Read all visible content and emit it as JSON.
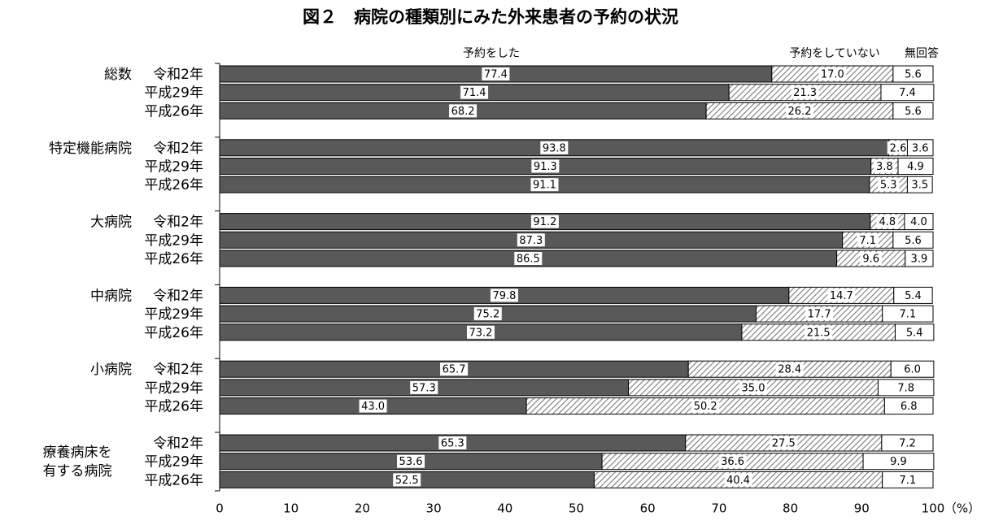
{
  "chart_data": {
    "type": "stacked-bar-horizontal",
    "title": "図２　病院の種類別にみた外来患者の予約の状況",
    "x_unit_label": "（%）",
    "groups": [
      {
        "name": "総数",
        "categories": [
          "令和2年",
          "平成29年",
          "平成26年"
        ]
      },
      {
        "name": "特定機能病院",
        "categories": [
          "令和2年",
          "平成29年",
          "平成26年"
        ]
      },
      {
        "name": "大病院",
        "categories": [
          "令和2年",
          "平成29年",
          "平成26年"
        ]
      },
      {
        "name": "中病院",
        "categories": [
          "令和2年",
          "平成29年",
          "平成26年"
        ]
      },
      {
        "name": "小病院",
        "categories": [
          "令和2年",
          "平成29年",
          "平成26年"
        ]
      },
      {
        "name": "療養病床を\n有する病院",
        "categories": [
          "令和2年",
          "平成29年",
          "平成26年"
        ]
      }
    ],
    "series": [
      {
        "name": "予約をした",
        "color": "#595959",
        "values": [
          77.4,
          71.4,
          68.2,
          93.8,
          91.3,
          91.1,
          91.2,
          87.3,
          86.5,
          79.8,
          75.2,
          73.2,
          65.7,
          57.3,
          43.0,
          65.3,
          53.6,
          52.5
        ],
        "value_labels": [
          "77.4",
          "71.4",
          "68.2",
          "93.8",
          "91.3",
          "91.1",
          "91.2",
          "87.3",
          "86.5",
          "79.8",
          "75.2",
          "73.2",
          "65.7",
          "57.3",
          "43.0",
          "65.3",
          "53.6",
          "52.5"
        ]
      },
      {
        "name": "予約をしていない",
        "color": "#8c8c8c",
        "pattern": "hatch",
        "values": [
          17.0,
          21.3,
          26.2,
          2.6,
          3.8,
          5.3,
          4.8,
          7.1,
          9.6,
          14.7,
          17.7,
          21.5,
          28.4,
          35.0,
          50.2,
          27.5,
          36.6,
          40.4
        ],
        "value_labels": [
          "17.0",
          "21.3",
          "26.2",
          "2.6",
          "3.8",
          "5.3",
          "4.8",
          "7.1",
          "9.6",
          "14.7",
          "17.7",
          "21.5",
          "28.4",
          "35.0",
          "50.2",
          "27.5",
          "36.6",
          "40.4"
        ]
      },
      {
        "name": "無回答",
        "color": "#ffffff",
        "values": [
          5.6,
          7.4,
          5.6,
          3.6,
          4.9,
          3.5,
          4.0,
          5.6,
          3.9,
          5.4,
          7.1,
          5.4,
          6.0,
          7.8,
          6.8,
          7.2,
          9.9,
          7.1
        ],
        "value_labels": [
          "5.6",
          "7.4",
          "5.6",
          "3.6",
          "4.9",
          "3.5",
          "4.0",
          "5.6",
          "3.9",
          "5.4",
          "7.1",
          "5.4",
          "6.0",
          "7.8",
          "6.8",
          "7.2",
          "9.9",
          "7.1"
        ]
      }
    ],
    "xlim": [
      0,
      100
    ],
    "xticks": [
      0,
      10,
      20,
      30,
      40,
      50,
      60,
      70,
      80,
      90,
      100
    ]
  }
}
